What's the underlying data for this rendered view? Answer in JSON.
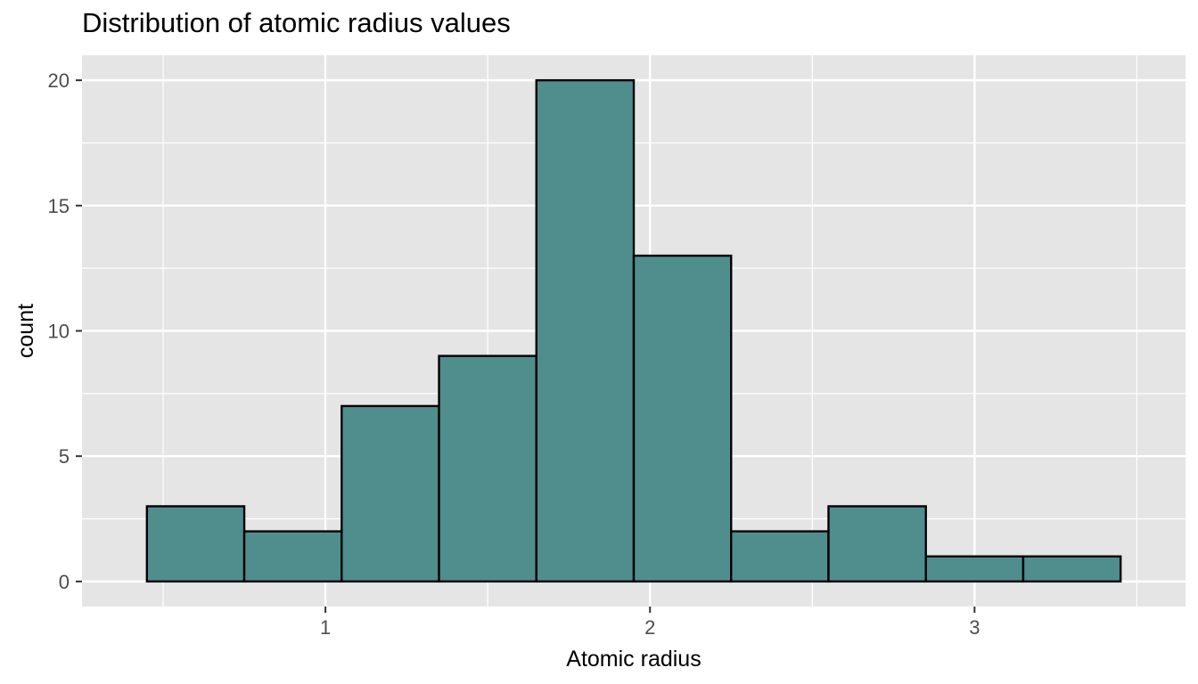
{
  "chart_data": {
    "type": "bar",
    "title": "Distribution of atomic radius values",
    "xlabel": "Atomic radius",
    "ylabel": "count",
    "bins": [
      {
        "x0": 0.45,
        "x1": 0.75,
        "count": 3
      },
      {
        "x0": 0.75,
        "x1": 1.05,
        "count": 2
      },
      {
        "x0": 1.05,
        "x1": 1.35,
        "count": 7
      },
      {
        "x0": 1.35,
        "x1": 1.65,
        "count": 9
      },
      {
        "x0": 1.65,
        "x1": 1.95,
        "count": 20
      },
      {
        "x0": 1.95,
        "x1": 2.25,
        "count": 13
      },
      {
        "x0": 2.25,
        "x1": 2.55,
        "count": 2
      },
      {
        "x0": 2.55,
        "x1": 2.85,
        "count": 3
      },
      {
        "x0": 2.85,
        "x1": 3.15,
        "count": 1
      },
      {
        "x0": 3.15,
        "x1": 3.45,
        "count": 1
      }
    ],
    "xlim": [
      0.25,
      3.65
    ],
    "ylim": [
      -1,
      21
    ],
    "x_ticks": [
      1,
      2,
      3
    ],
    "x_minor_ticks": [
      0.5,
      1.5,
      2.5,
      3.5
    ],
    "y_ticks": [
      0,
      5,
      10,
      15,
      20
    ],
    "y_minor_ticks": [
      2.5,
      7.5,
      12.5,
      17.5
    ],
    "grid": true,
    "colors": {
      "bar_fill": "#508e8e",
      "bar_stroke": "#000000",
      "panel_background": "#e5e5e5",
      "grid": "#ffffff"
    }
  }
}
